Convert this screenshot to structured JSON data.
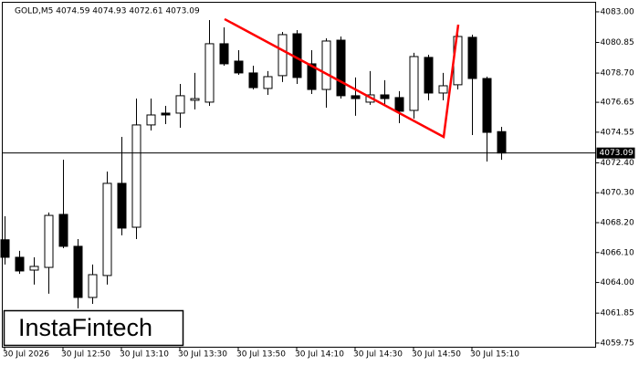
{
  "chart_data": {
    "type": "candlestick",
    "title": "GOLD,M5  4074.59 4074.93 4072.61 4073.09",
    "watermark": "InstaFintech",
    "categories": [
      "30 Jul 2026",
      null,
      null,
      null,
      "30 Jul 12:50",
      null,
      null,
      null,
      "30 Jul 13:10",
      null,
      null,
      null,
      "30 Jul 13:30",
      null,
      null,
      null,
      "30 Jul 13:50",
      null,
      null,
      null,
      "30 Jul 14:10",
      null,
      null,
      null,
      "30 Jul 14:30",
      null,
      null,
      null,
      "30 Jul 14:50",
      null,
      null,
      null,
      "30 Jul 15:10",
      null,
      null
    ],
    "open": [
      4067.0,
      4065.77,
      4064.87,
      4065.06,
      4068.78,
      4066.54,
      4062.95,
      4064.49,
      4070.96,
      4067.88,
      4075.06,
      4075.89,
      4075.89,
      4076.79,
      4076.66,
      4080.76,
      4079.54,
      4078.71,
      4077.62,
      4078.52,
      4081.46,
      4079.35,
      4077.55,
      4081.01,
      4077.11,
      4076.66,
      4077.17,
      4076.98,
      4076.08,
      4079.8,
      4077.3,
      4077.88,
      4081.21,
      4078.32,
      4074.59
    ],
    "high": [
      4068.65,
      4066.22,
      4065.77,
      4068.91,
      4072.62,
      4067.05,
      4065.26,
      4071.79,
      4074.22,
      4076.91,
      4076.91,
      4076.4,
      4077.94,
      4078.71,
      4082.42,
      4081.91,
      4080.31,
      4079.22,
      4078.84,
      4081.59,
      4081.72,
      4080.31,
      4081.14,
      4081.27,
      4078.39,
      4078.84,
      4078.2,
      4077.43,
      4080.12,
      4079.99,
      4078.71,
      4081.53,
      4081.4,
      4078.45,
      4074.93
    ],
    "low": [
      4065.26,
      4064.61,
      4063.85,
      4063.21,
      4066.41,
      4062.18,
      4062.5,
      4063.85,
      4067.31,
      4067.05,
      4074.67,
      4075.12,
      4074.86,
      4076.15,
      4076.4,
      4079.22,
      4078.58,
      4077.55,
      4077.17,
      4078.07,
      4077.94,
      4077.23,
      4076.27,
      4076.91,
      4075.7,
      4076.47,
      4076.47,
      4075.18,
      4075.5,
      4076.79,
      4076.79,
      4077.55,
      4074.35,
      4072.49,
      4072.61
    ],
    "close": [
      4065.77,
      4064.81,
      4065.13,
      4068.71,
      4066.54,
      4062.95,
      4064.55,
      4070.96,
      4067.82,
      4075.06,
      4075.76,
      4075.76,
      4077.11,
      4076.91,
      4080.76,
      4079.35,
      4078.71,
      4077.68,
      4078.45,
      4081.4,
      4078.39,
      4077.55,
      4080.95,
      4077.11,
      4076.91,
      4077.17,
      4076.91,
      4076.02,
      4079.86,
      4077.3,
      4077.81,
      4081.27,
      4078.32,
      4074.54,
      4073.09
    ],
    "up_color": "#ffffff",
    "down_color": "#000000",
    "pattern": {
      "color": "#ff0000",
      "x": [
        15,
        30,
        31
      ],
      "values": [
        4082.49,
        4074.22,
        4082.1
      ]
    },
    "last_price": 4073.09,
    "ylim": [
      4059.49,
      4083.83
    ],
    "yticks": [
      {
        "value": 4083.0,
        "label": "4083.00"
      },
      {
        "value": 4080.85,
        "label": "4080.85"
      },
      {
        "value": 4078.7,
        "label": "4078.70"
      },
      {
        "value": 4076.65,
        "label": "4076.65"
      },
      {
        "value": 4074.55,
        "label": "4074.55"
      },
      {
        "value": 4072.4,
        "label": "4072.40"
      },
      {
        "value": 4070.3,
        "label": "4070.30"
      },
      {
        "value": 4068.2,
        "label": "4068.20"
      },
      {
        "value": 4066.1,
        "label": "4066.10"
      },
      {
        "value": 4064.0,
        "label": "4064.00"
      },
      {
        "value": 4061.85,
        "label": "4061.85"
      },
      {
        "value": 4059.75,
        "label": "4059.75"
      }
    ]
  }
}
